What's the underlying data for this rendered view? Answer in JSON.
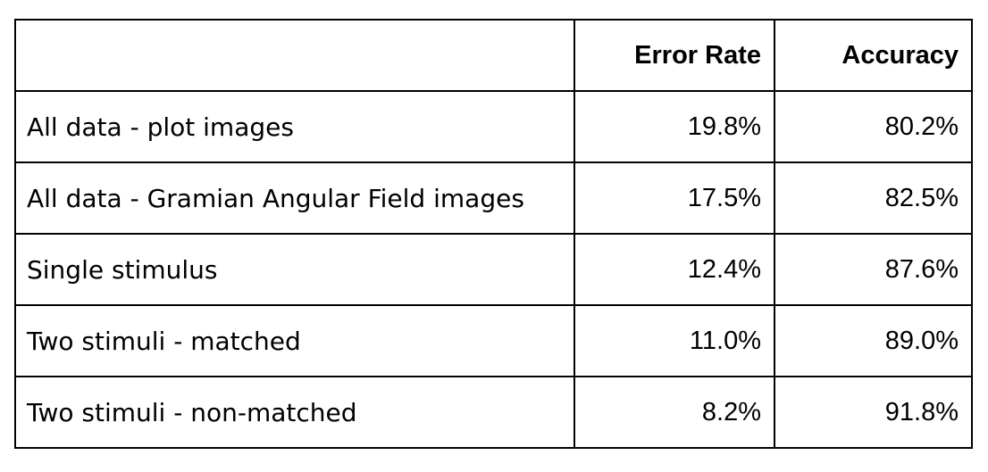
{
  "table": {
    "headers": [
      "",
      "Error Rate",
      "Accuracy"
    ],
    "rows": [
      {
        "label": "All data - plot images",
        "error_rate": "19.8%",
        "accuracy": "80.2%"
      },
      {
        "label": "All data - Gramian Angular Field images",
        "error_rate": "17.5%",
        "accuracy": "82.5%"
      },
      {
        "label": "Single stimulus",
        "error_rate": "12.4%",
        "accuracy": "87.6%"
      },
      {
        "label": "Two stimuli - matched",
        "error_rate": "11.0%",
        "accuracy": "89.0%"
      },
      {
        "label": "Two stimuli - non-matched",
        "error_rate": "8.2%",
        "accuracy": "91.8%"
      }
    ]
  }
}
